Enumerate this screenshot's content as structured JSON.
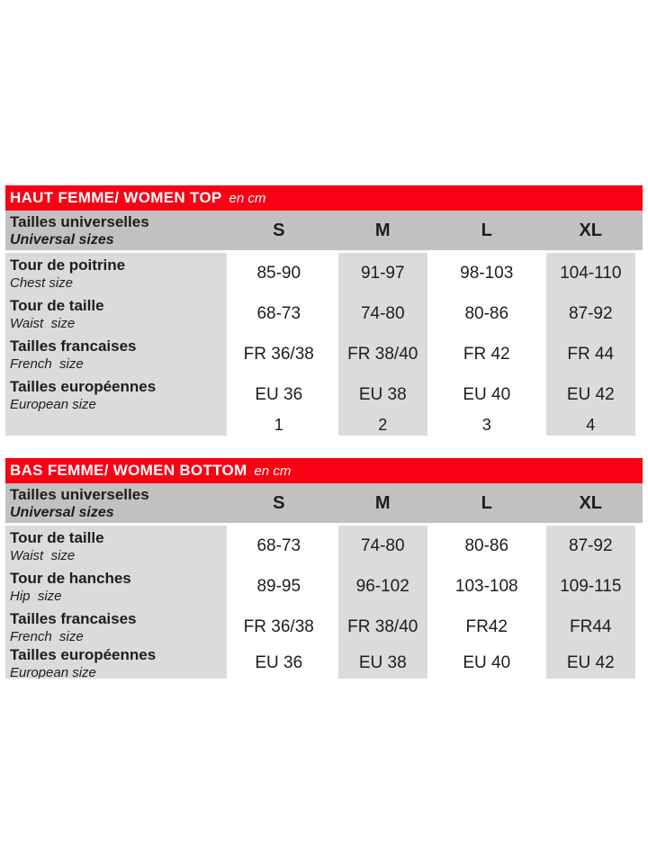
{
  "colors": {
    "accent_red": "#fa0015",
    "header_gray": "#c1c1c1",
    "cell_gray": "#dbdbdb",
    "text_dark": "#1d1d1b"
  },
  "tables": [
    {
      "title": "HAUT FEMME/ WOMEN TOP",
      "unit": "en cm",
      "header": {
        "label_fr": "Tailles universelles",
        "label_en": "Universal sizes",
        "columns": [
          "S",
          "M",
          "L",
          "XL"
        ]
      },
      "rows": [
        {
          "label_fr": "Tour de poitrine",
          "label_en": "Chest size",
          "values": [
            "85-90",
            "91-97",
            "98-103",
            "104-110"
          ]
        },
        {
          "label_fr": "Tour de taille",
          "label_en": "Waist  size",
          "values": [
            "68-73",
            "74-80",
            "80-86",
            "87-92"
          ]
        },
        {
          "label_fr": "Tailles francaises",
          "label_en": "French  size",
          "values": [
            "FR 36/38",
            "FR 38/40",
            "FR 42",
            "FR 44"
          ]
        },
        {
          "label_fr": "Tailles européennes",
          "label_en": "European size",
          "values": [
            "EU 36",
            "EU 38",
            "EU 40",
            "EU 42"
          ]
        },
        {
          "label_fr": "",
          "label_en": "",
          "values": [
            "1",
            "2",
            "3",
            "4"
          ]
        }
      ]
    },
    {
      "title": "BAS FEMME/ WOMEN BOTTOM",
      "unit": "en cm",
      "header": {
        "label_fr": "Tailles universelles",
        "label_en": "Universal sizes",
        "columns": [
          "S",
          "M",
          "L",
          "XL"
        ]
      },
      "rows": [
        {
          "label_fr": "Tour de taille",
          "label_en": "Waist  size",
          "values": [
            "68-73",
            "74-80",
            "80-86",
            "87-92"
          ]
        },
        {
          "label_fr": "Tour de hanches",
          "label_en": "Hip  size",
          "values": [
            "89-95",
            "96-102",
            "103-108",
            "109-115"
          ]
        },
        {
          "label_fr": "Tailles francaises",
          "label_en": "French  size",
          "values": [
            "FR 36/38",
            "FR 38/40",
            "FR42",
            "FR44"
          ]
        },
        {
          "label_fr": "Tailles européennes",
          "label_en": "European size",
          "values": [
            "EU 36",
            "EU 38",
            "EU 40",
            "EU 42"
          ]
        }
      ]
    }
  ]
}
